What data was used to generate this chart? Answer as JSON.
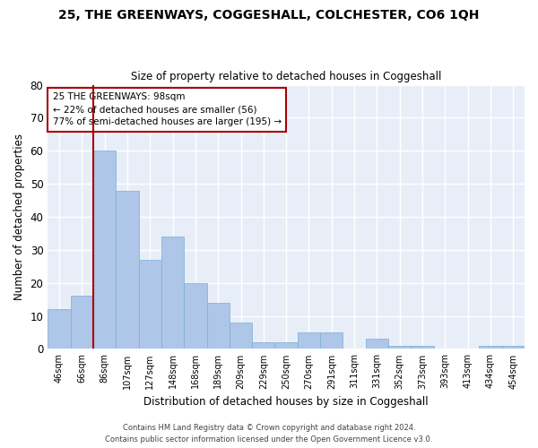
{
  "title": "25, THE GREENWAYS, COGGESHALL, COLCHESTER, CO6 1QH",
  "subtitle": "Size of property relative to detached houses in Coggeshall",
  "xlabel": "Distribution of detached houses by size in Coggeshall",
  "ylabel": "Number of detached properties",
  "footer1": "Contains HM Land Registry data © Crown copyright and database right 2024.",
  "footer2": "Contains public sector information licensed under the Open Government Licence v3.0.",
  "categories": [
    "46sqm",
    "66sqm",
    "86sqm",
    "107sqm",
    "127sqm",
    "148sqm",
    "168sqm",
    "189sqm",
    "209sqm",
    "229sqm",
    "250sqm",
    "270sqm",
    "291sqm",
    "311sqm",
    "331sqm",
    "352sqm",
    "373sqm",
    "393sqm",
    "413sqm",
    "434sqm",
    "454sqm"
  ],
  "values": [
    12,
    16,
    60,
    48,
    27,
    34,
    20,
    14,
    8,
    2,
    2,
    5,
    5,
    0,
    3,
    1,
    1,
    0,
    0,
    1,
    1
  ],
  "bar_color": "#aec6e8",
  "bar_edge_color": "#7aafd4",
  "background_color": "#e8eef8",
  "grid_color": "#ffffff",
  "annotation_text1": "25 THE GREENWAYS: 98sqm",
  "annotation_text2": "← 22% of detached houses are smaller (56)",
  "annotation_text3": "77% of semi-detached houses are larger (195) →",
  "vline_color": "#aa0000",
  "annotation_box_edge": "#aa0000",
  "ylim": [
    0,
    80
  ],
  "yticks": [
    0,
    10,
    20,
    30,
    40,
    50,
    60,
    70,
    80
  ],
  "vline_x": 1.5,
  "figwidth": 6.0,
  "figheight": 5.0,
  "dpi": 100
}
